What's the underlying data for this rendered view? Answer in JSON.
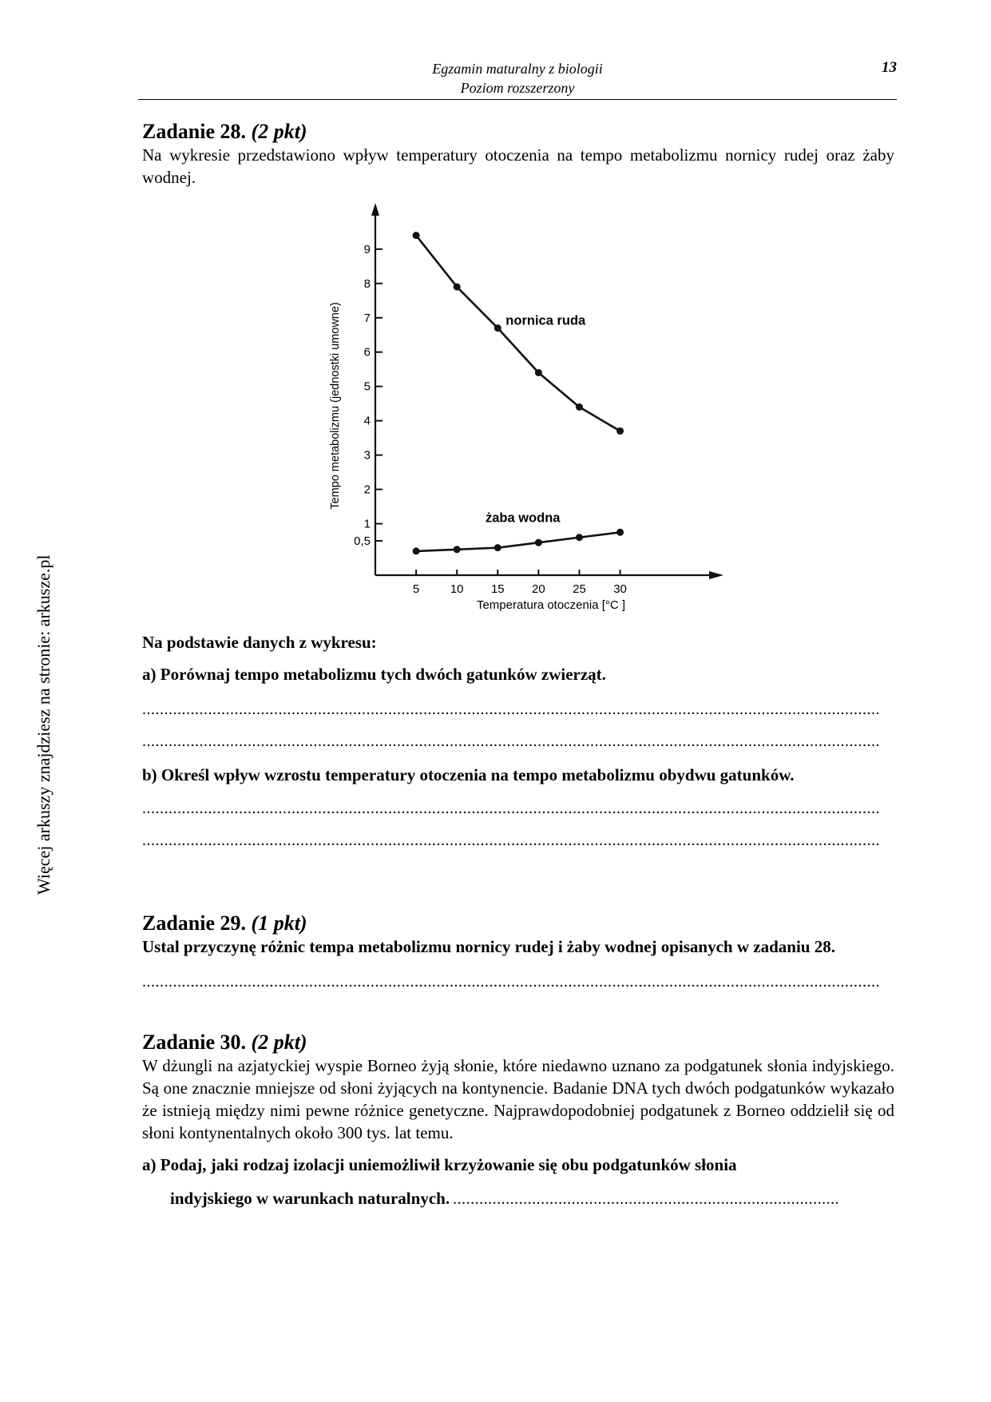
{
  "header": {
    "line1": "Egzamin maturalny z biologii",
    "line2": "Poziom rozszerzony",
    "page_number": "13"
  },
  "side_note": "Więcej arkuszy znajdziesz na stronie: arkusze.pl",
  "task28": {
    "title": "Zadanie 28.",
    "points": "(2 pkt)",
    "intro": "Na wykresie przedstawiono wpływ temperatury otoczenia na tempo metabolizmu nornicy rudej oraz żaby wodnej.",
    "instruction": "Na podstawie danych z wykresu:",
    "question_a": "a) Porównaj tempo metabolizmu tych dwóch gatunków zwierząt.",
    "question_b": "b) Określ wpływ wzrostu temperatury otoczenia na tempo metabolizmu obydwu gatunków."
  },
  "task29": {
    "title": "Zadanie 29.",
    "points": "(1 pkt)",
    "question": "Ustal przyczynę różnic tempa metabolizmu nornicy rudej i żaby wodnej opisanych w zadaniu 28."
  },
  "task30": {
    "title": "Zadanie 30.",
    "points": "(2 pkt)",
    "intro": "W dżungli na azjatyckiej wyspie Borneo żyją słonie, które niedawno uznano za podgatunek słonia indyjskiego. Są one znacznie mniejsze od słoni żyjących na kontynencie. Badanie DNA tych dwóch podgatunków wykazało że istnieją między nimi pewne różnice genetyczne. Najprawdopodobniej podgatunek z Borneo oddzielił się od słoni kontynentalnych około 300 tys. lat temu.",
    "question_a_line1": "a) Podaj, jaki rodzaj izolacji uniemożliwił krzyżowanie się obu podgatunków słonia",
    "question_a_line2": "indyjskiego w warunkach naturalnych."
  },
  "answer_dots": "........................................................................................................................................................................",
  "answer_dots_short": "........................................................................................",
  "chart_data": {
    "type": "line",
    "xlabel": "Temperatura otoczenia [°C ]",
    "ylabel": "Tempo metabolizmu (jednostki umowne)",
    "x_ticks": [
      "5",
      "10",
      "15",
      "20",
      "25",
      "30"
    ],
    "y_ticks": [
      "0,5",
      "1",
      "2",
      "3",
      "4",
      "5",
      "6",
      "7",
      "8",
      "9"
    ],
    "y_tick_values": [
      0.5,
      1,
      2,
      3,
      4,
      5,
      6,
      7,
      8,
      9
    ],
    "xlim": [
      0,
      32
    ],
    "ylim": [
      -0.5,
      10.3
    ],
    "grid": false,
    "series": [
      {
        "name": "nornica ruda",
        "x": [
          5,
          10,
          15,
          20,
          25,
          30
        ],
        "values": [
          9.4,
          7.9,
          6.7,
          5.4,
          4.4,
          3.7
        ]
      },
      {
        "name": "żaba wodna",
        "x": [
          5,
          10,
          15,
          20,
          25,
          30
        ],
        "values": [
          0.2,
          0.25,
          0.3,
          0.45,
          0.6,
          0.75
        ]
      }
    ]
  }
}
